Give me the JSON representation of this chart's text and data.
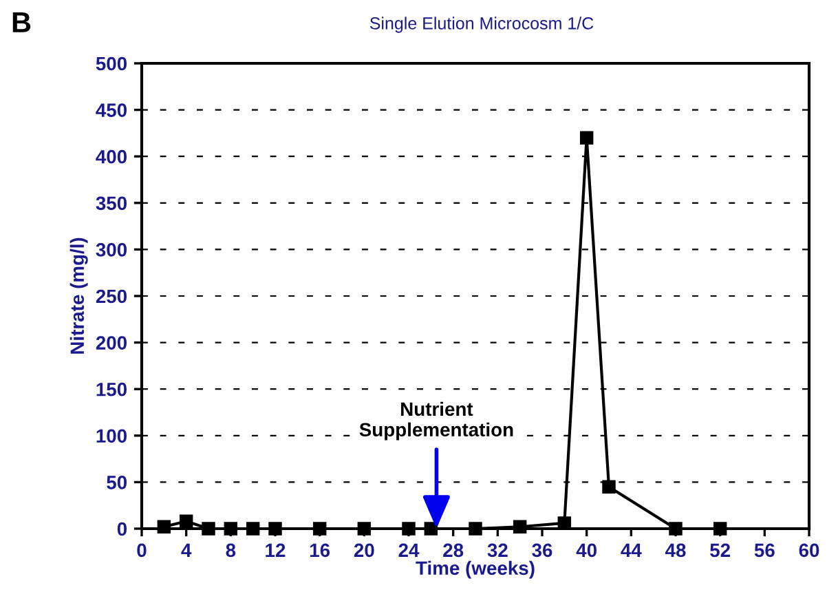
{
  "chart_data": {
    "type": "line",
    "title": "Single Elution Microcosm 1/C",
    "xlabel": "Time (weeks)",
    "ylabel": "Nitrate (mg/l)",
    "x": [
      2,
      4,
      6,
      8,
      10,
      12,
      16,
      20,
      24,
      26,
      30,
      34,
      38,
      40,
      42,
      48,
      52
    ],
    "series": [
      {
        "color": "#000000",
        "values": [
          2,
          8,
          0,
          0,
          0,
          0,
          0,
          0,
          0,
          0,
          0,
          2,
          6,
          420,
          45,
          0,
          0
        ]
      }
    ],
    "xlim": [
      0,
      60
    ],
    "xticks": [
      0,
      4,
      8,
      12,
      16,
      20,
      24,
      28,
      32,
      36,
      40,
      44,
      48,
      52,
      56,
      60
    ],
    "ylim": [
      0,
      500
    ],
    "yticks": [
      0,
      50,
      100,
      150,
      200,
      250,
      300,
      350,
      400,
      450,
      500
    ],
    "grid": "y",
    "marker": "square",
    "line_style": "solid",
    "legend": false,
    "annotations": [
      "B",
      {
        "text": "Nutrient\nSupplementation",
        "x": 26.5,
        "y": 0
      }
    ]
  }
}
